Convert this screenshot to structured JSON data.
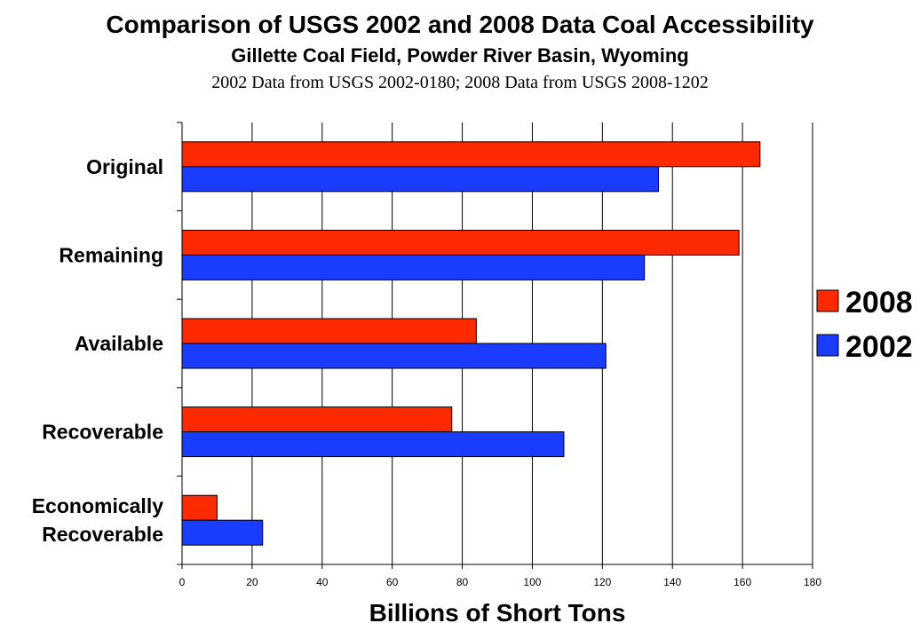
{
  "chart_data": {
    "type": "bar",
    "orientation": "horizontal",
    "title": "Comparison of USGS 2002 and 2008 Data Coal Accessibility",
    "subtitle": "Gillette Coal Field, Powder River Basin, Wyoming",
    "source_note": "2002 Data from USGS 2002-0180; 2008 Data from USGS 2008-1202",
    "xlabel": "Billions of Short Tons",
    "ylabel": "",
    "categories": [
      "Original",
      "Remaining",
      "Available",
      "Recoverable",
      "Economically Recoverable"
    ],
    "category_lines": [
      [
        "Original"
      ],
      [
        "Remaining"
      ],
      [
        "Available"
      ],
      [
        "Recoverable"
      ],
      [
        "Economically",
        "Recoverable"
      ]
    ],
    "series": [
      {
        "name": "2008",
        "color": "#ff2a00",
        "values": [
          165,
          159,
          84,
          77,
          10
        ]
      },
      {
        "name": "2002",
        "color": "#1a3cff",
        "values": [
          136,
          132,
          121,
          109,
          23
        ]
      }
    ],
    "xlim": [
      0,
      180
    ],
    "xticks": [
      0,
      20,
      40,
      60,
      80,
      100,
      120,
      140,
      160,
      180
    ],
    "grid": true,
    "legend_position": "right"
  }
}
